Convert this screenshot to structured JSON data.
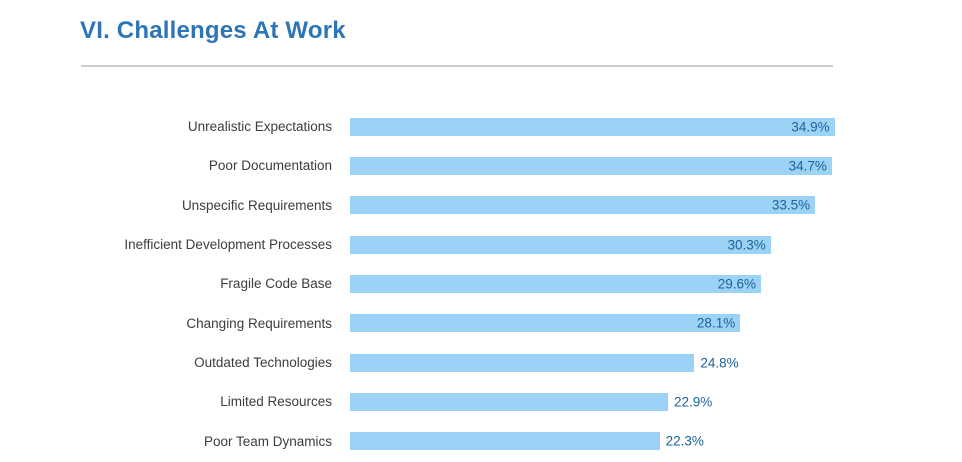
{
  "header": {
    "title": "VI. Challenges At Work",
    "title_color": "#2e75b6",
    "divider_color": "#cccccc"
  },
  "chart_data": {
    "type": "bar",
    "orientation": "horizontal",
    "title": "VI. Challenges At Work",
    "categories": [
      "Unrealistic Expectations",
      "Poor Documentation",
      "Unspecific Requirements",
      "Inefficient Development Processes",
      "Fragile Code Base",
      "Changing Requirements",
      "Outdated Technologies",
      "Limited Resources",
      "Poor Team Dynamics"
    ],
    "values": [
      34.9,
      34.7,
      33.5,
      30.3,
      29.6,
      28.1,
      24.8,
      22.9,
      22.3
    ],
    "value_labels": [
      "34.9%",
      "34.7%",
      "33.5%",
      "30.3%",
      "29.6%",
      "28.1%",
      "24.8%",
      "22.9%",
      "22.3%"
    ],
    "value_suffix": "%",
    "xlabel": "",
    "ylabel": "",
    "xlim": [
      0,
      35
    ],
    "grid": false,
    "legend": false,
    "bar_color": "#9bd2f6",
    "value_label_color": "#1d6398",
    "category_label_color": "#3c3c3c",
    "value_label_positions": [
      "inside",
      "inside",
      "inside",
      "inside",
      "inside",
      "inside",
      "outside",
      "outside",
      "outside"
    ]
  }
}
